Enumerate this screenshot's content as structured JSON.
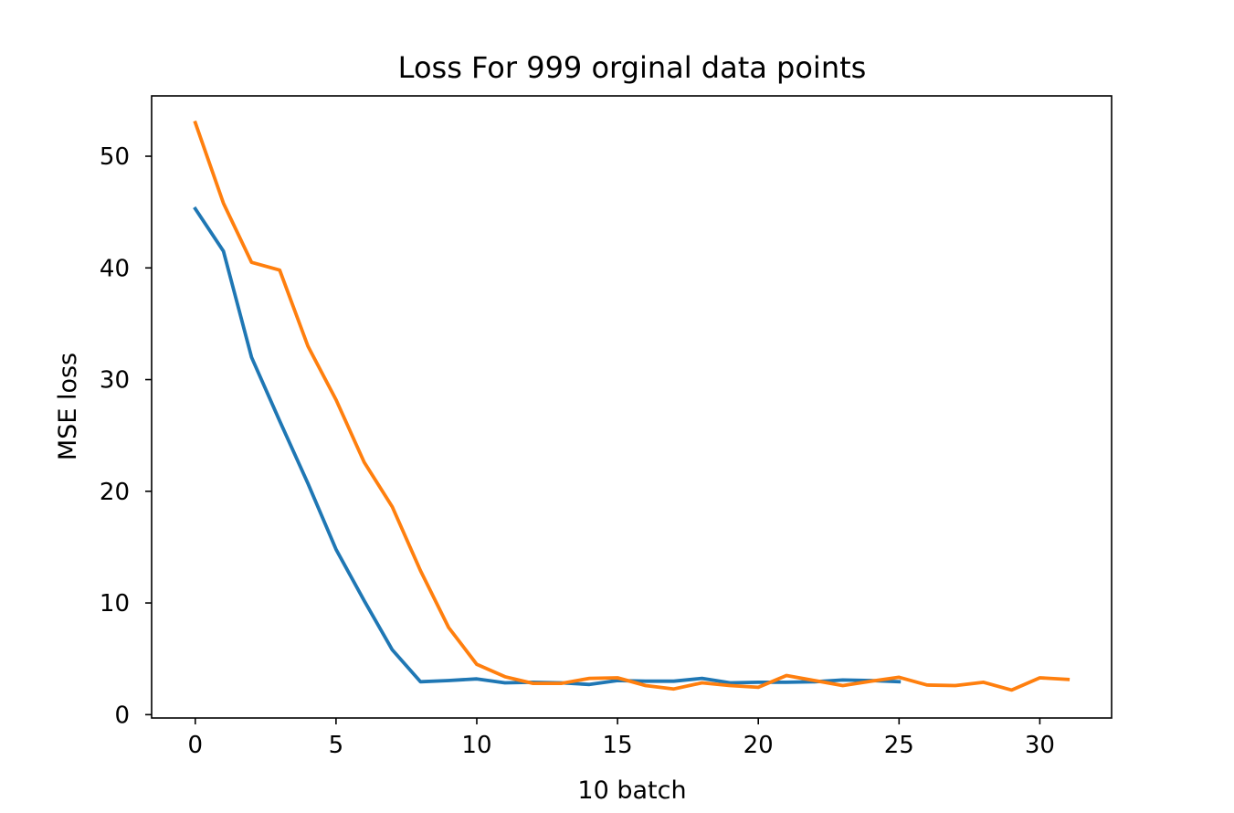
{
  "chart_data": {
    "type": "line",
    "title": "Loss For 999 orginal data points",
    "xlabel": "10 batch",
    "ylabel": "MSE loss",
    "xlim": [
      -1.55,
      32.55
    ],
    "ylim": [
      -0.3,
      55.4
    ],
    "xticks": [
      0,
      5,
      10,
      15,
      20,
      25,
      30
    ],
    "yticks": [
      0,
      10,
      20,
      30,
      40,
      50
    ],
    "grid": false,
    "legend": "none",
    "series": [
      {
        "color": "#1f77b4",
        "x": [
          0,
          1,
          2,
          3,
          4,
          5,
          6,
          7,
          8,
          9,
          10,
          11,
          12,
          13,
          14,
          15,
          16,
          17,
          18,
          19,
          20,
          21,
          22,
          23,
          24,
          25
        ],
        "y": [
          45.3,
          41.5,
          32.0,
          26.3,
          20.7,
          14.8,
          10.2,
          5.8,
          2.95,
          3.05,
          3.2,
          2.85,
          2.9,
          2.85,
          2.7,
          3.05,
          3.0,
          3.0,
          3.25,
          2.85,
          2.9,
          2.9,
          2.95,
          3.1,
          3.05,
          2.95
        ]
      },
      {
        "color": "#ff7f0e",
        "x": [
          0,
          1,
          2,
          3,
          4,
          5,
          6,
          7,
          8,
          9,
          10,
          11,
          12,
          13,
          14,
          15,
          16,
          17,
          18,
          19,
          20,
          21,
          22,
          23,
          24,
          25,
          26,
          27,
          28,
          29,
          30,
          31
        ],
        "y": [
          53.0,
          45.8,
          40.5,
          39.8,
          33.0,
          28.2,
          22.6,
          18.6,
          12.9,
          7.8,
          4.5,
          3.4,
          2.8,
          2.8,
          3.25,
          3.3,
          2.6,
          2.3,
          2.85,
          2.6,
          2.45,
          3.5,
          3.05,
          2.6,
          3.0,
          3.35,
          2.65,
          2.6,
          2.9,
          2.2,
          3.3,
          3.15
        ]
      }
    ]
  }
}
